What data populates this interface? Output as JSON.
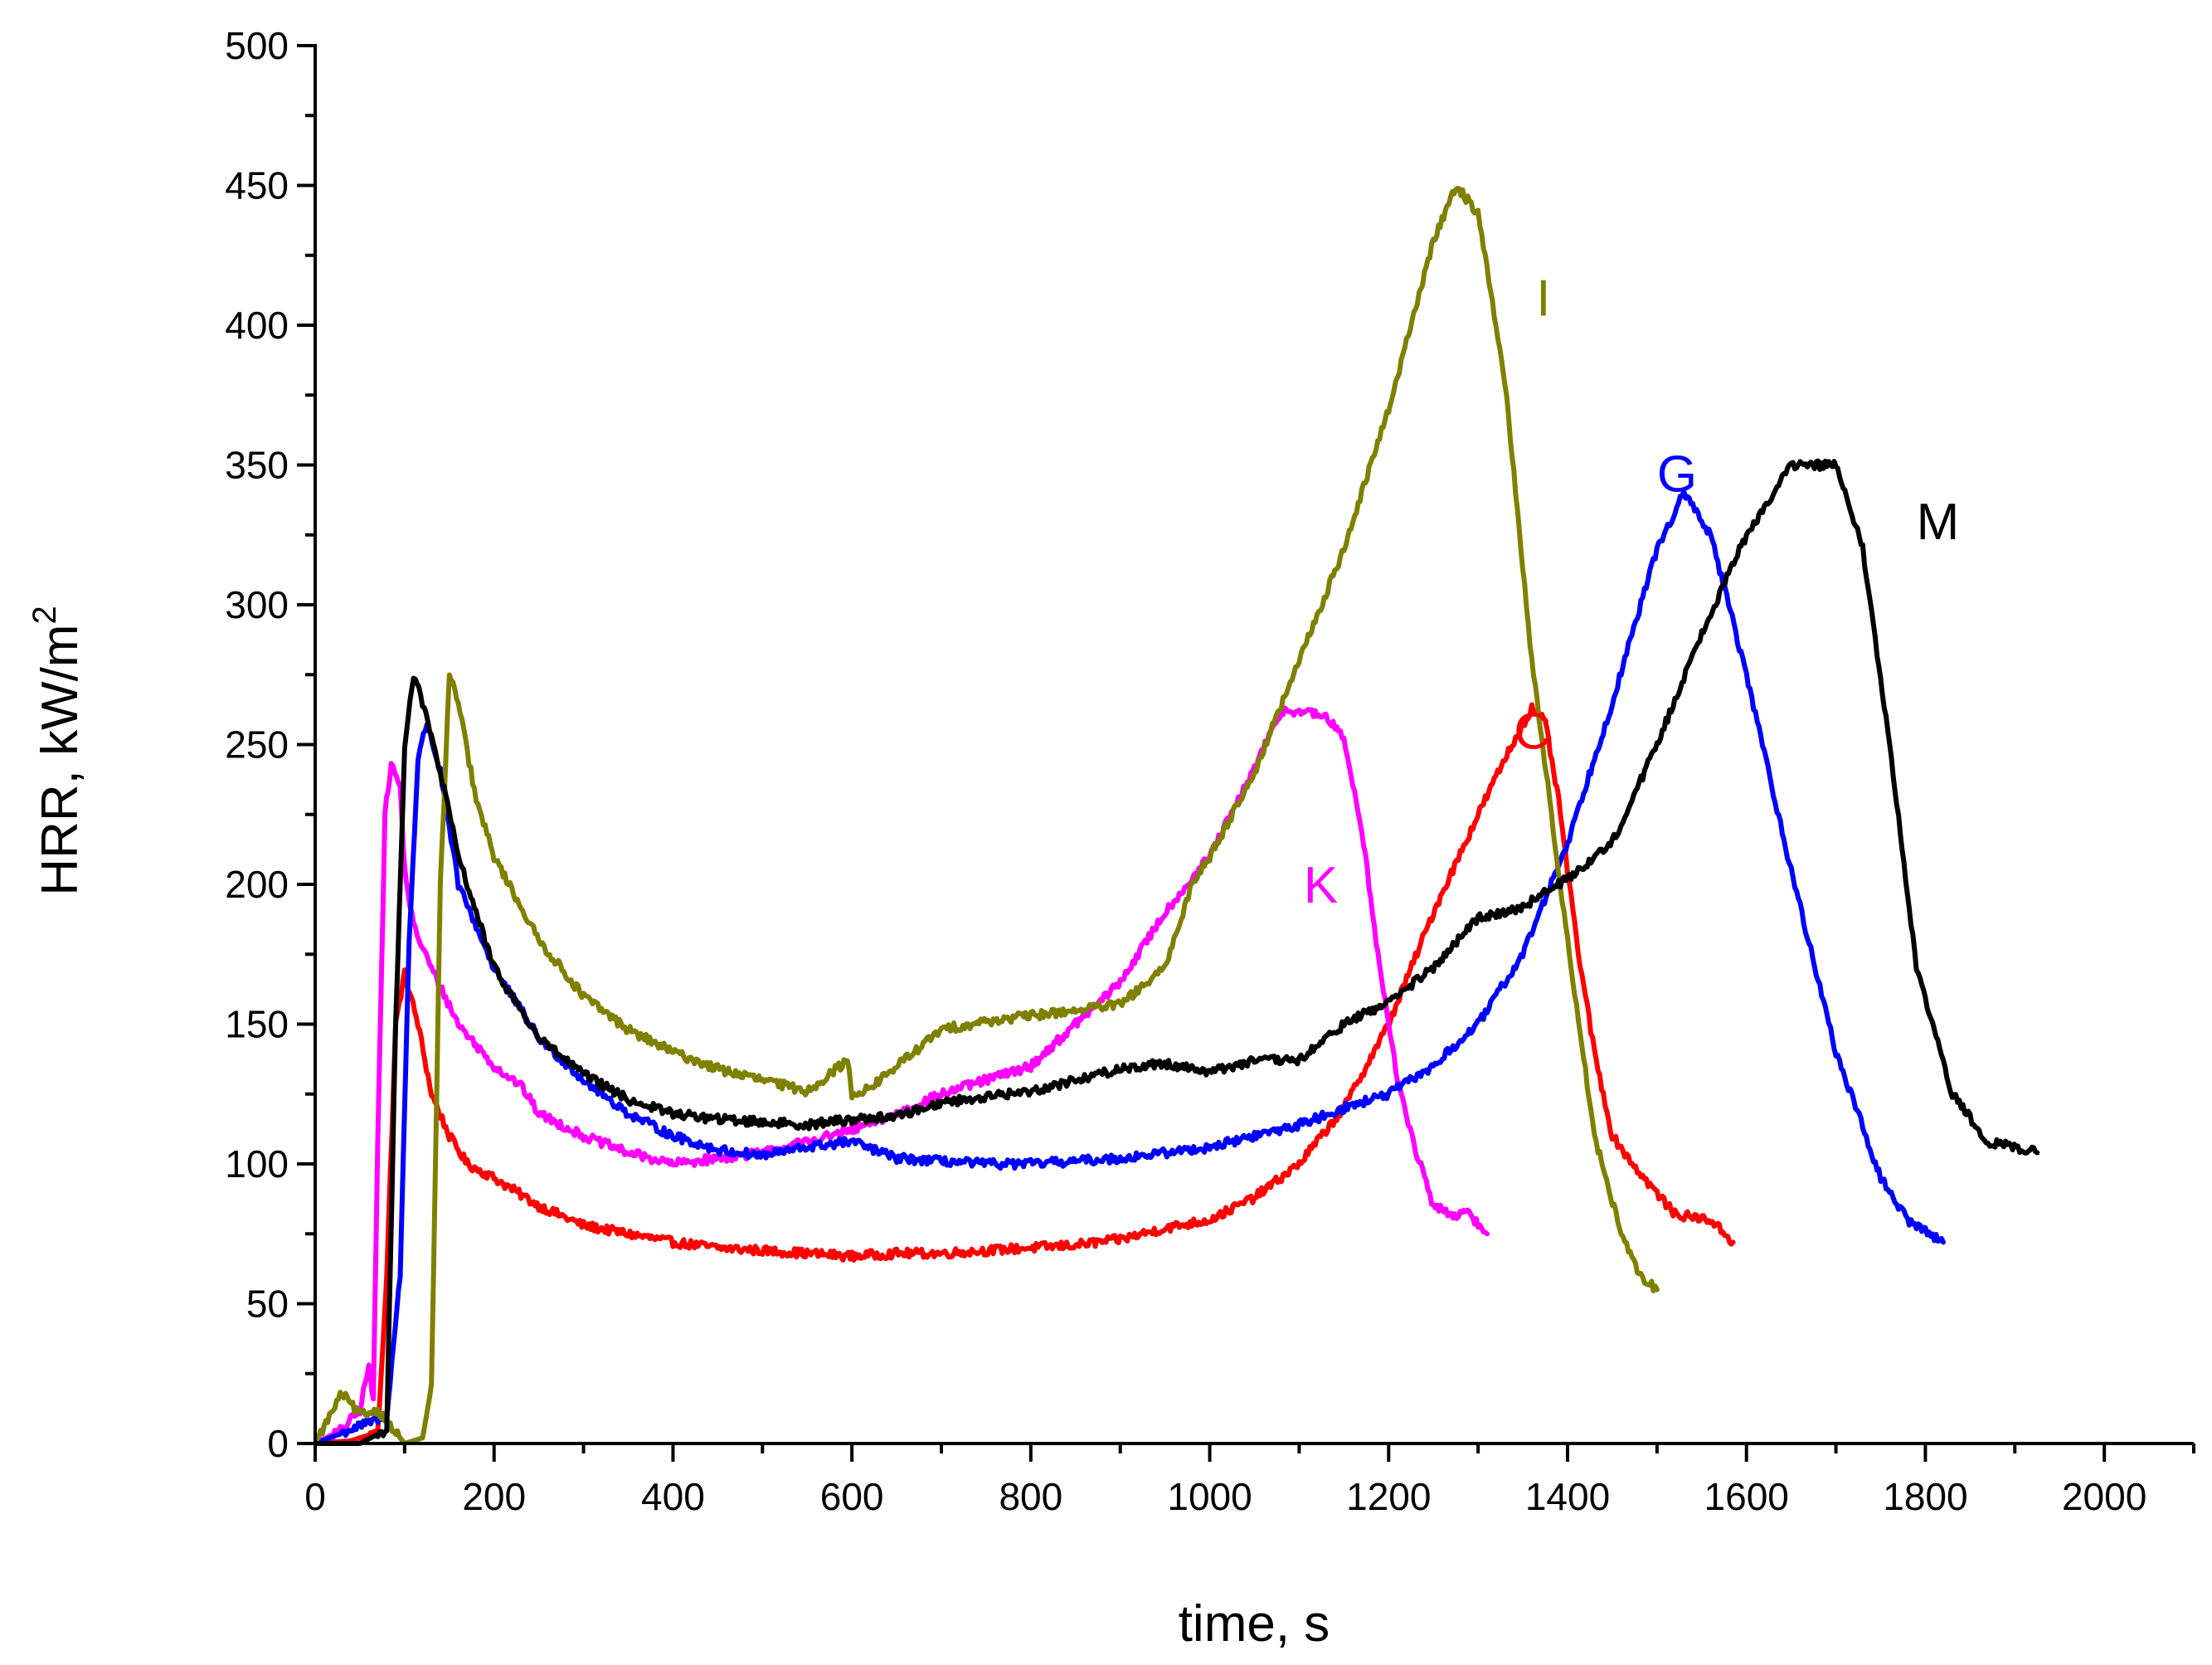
{
  "chart_data": {
    "type": "line",
    "title": "",
    "xlabel": "time, s",
    "ylabel_main": "HRR, kW/m",
    "ylabel_sup": "2",
    "xlim": [
      0,
      2100
    ],
    "ylim": [
      0,
      500
    ],
    "xticks": [
      0,
      200,
      400,
      600,
      800,
      1000,
      1200,
      1400,
      1600,
      1800,
      2000
    ],
    "yticks": [
      0,
      50,
      100,
      150,
      200,
      250,
      300,
      350,
      400,
      450,
      500
    ],
    "xtick_labels": [
      "0",
      "200",
      "400",
      "600",
      "800",
      "1000",
      "1200",
      "1400",
      "1600",
      "1800",
      "2000"
    ],
    "ytick_labels": [
      "0",
      "50",
      "100",
      "150",
      "200",
      "250",
      "300",
      "350",
      "400",
      "450",
      "500"
    ],
    "grid": false,
    "series": [
      {
        "name": "C",
        "color": "#ff0000",
        "label_at": [
          1340,
          255
        ],
        "points": [
          [
            0,
            0
          ],
          [
            40,
            1
          ],
          [
            70,
            4
          ],
          [
            80,
            60
          ],
          [
            90,
            150
          ],
          [
            100,
            168
          ],
          [
            115,
            150
          ],
          [
            130,
            125
          ],
          [
            150,
            110
          ],
          [
            170,
            100
          ],
          [
            200,
            95
          ],
          [
            250,
            85
          ],
          [
            300,
            78
          ],
          [
            350,
            75
          ],
          [
            400,
            72
          ],
          [
            450,
            70
          ],
          [
            500,
            69
          ],
          [
            550,
            68
          ],
          [
            600,
            67
          ],
          [
            650,
            68
          ],
          [
            700,
            68
          ],
          [
            750,
            69
          ],
          [
            800,
            70
          ],
          [
            850,
            71
          ],
          [
            900,
            73
          ],
          [
            950,
            77
          ],
          [
            1000,
            80
          ],
          [
            1050,
            88
          ],
          [
            1100,
            100
          ],
          [
            1150,
            120
          ],
          [
            1200,
            150
          ],
          [
            1250,
            190
          ],
          [
            1300,
            225
          ],
          [
            1330,
            245
          ],
          [
            1360,
            263
          ],
          [
            1375,
            258
          ],
          [
            1390,
            230
          ],
          [
            1410,
            180
          ],
          [
            1430,
            140
          ],
          [
            1450,
            110
          ],
          [
            1480,
            97
          ],
          [
            1520,
            82
          ],
          [
            1560,
            80
          ],
          [
            1585,
            72
          ]
        ]
      },
      {
        "name": "K",
        "color": "#ff00ff",
        "label_at": [
          1105,
          200
        ],
        "points": [
          [
            0,
            0
          ],
          [
            30,
            5
          ],
          [
            50,
            12
          ],
          [
            60,
            28
          ],
          [
            65,
            15
          ],
          [
            70,
            110
          ],
          [
            78,
            225
          ],
          [
            85,
            243
          ],
          [
            95,
            235
          ],
          [
            100,
            205
          ],
          [
            110,
            185
          ],
          [
            130,
            170
          ],
          [
            160,
            150
          ],
          [
            200,
            135
          ],
          [
            230,
            128
          ],
          [
            250,
            118
          ],
          [
            300,
            110
          ],
          [
            350,
            104
          ],
          [
            400,
            100
          ],
          [
            450,
            102
          ],
          [
            500,
            104
          ],
          [
            550,
            108
          ],
          [
            600,
            112
          ],
          [
            650,
            118
          ],
          [
            700,
            125
          ],
          [
            750,
            130
          ],
          [
            800,
            135
          ],
          [
            850,
            150
          ],
          [
            900,
            165
          ],
          [
            950,
            190
          ],
          [
            1000,
            210
          ],
          [
            1040,
            235
          ],
          [
            1080,
            262
          ],
          [
            1100,
            262
          ],
          [
            1130,
            260
          ],
          [
            1150,
            252
          ],
          [
            1170,
            220
          ],
          [
            1190,
            170
          ],
          [
            1210,
            130
          ],
          [
            1230,
            105
          ],
          [
            1250,
            85
          ],
          [
            1270,
            82
          ],
          [
            1290,
            82
          ],
          [
            1310,
            75
          ]
        ]
      },
      {
        "name": "G",
        "color": "#0000ff",
        "label_at": [
          1500,
          347
        ],
        "points": [
          [
            0,
            0
          ],
          [
            40,
            5
          ],
          [
            80,
            10
          ],
          [
            95,
            60
          ],
          [
            105,
            180
          ],
          [
            115,
            245
          ],
          [
            125,
            258
          ],
          [
            140,
            240
          ],
          [
            160,
            200
          ],
          [
            200,
            170
          ],
          [
            250,
            145
          ],
          [
            300,
            130
          ],
          [
            350,
            118
          ],
          [
            400,
            110
          ],
          [
            450,
            105
          ],
          [
            500,
            103
          ],
          [
            550,
            106
          ],
          [
            600,
            108
          ],
          [
            650,
            102
          ],
          [
            700,
            101
          ],
          [
            750,
            100
          ],
          [
            800,
            100
          ],
          [
            850,
            101
          ],
          [
            900,
            102
          ],
          [
            950,
            104
          ],
          [
            1000,
            106
          ],
          [
            1050,
            110
          ],
          [
            1100,
            114
          ],
          [
            1150,
            120
          ],
          [
            1200,
            125
          ],
          [
            1250,
            135
          ],
          [
            1300,
            150
          ],
          [
            1350,
            175
          ],
          [
            1400,
            215
          ],
          [
            1450,
            265
          ],
          [
            1500,
            320
          ],
          [
            1530,
            340
          ],
          [
            1560,
            325
          ],
          [
            1600,
            275
          ],
          [
            1650,
            205
          ],
          [
            1700,
            140
          ],
          [
            1750,
            95
          ],
          [
            1780,
            80
          ],
          [
            1820,
            72
          ]
        ]
      },
      {
        "name": "I",
        "color": "#808000",
        "label_at": [
          1365,
          410
        ],
        "points": [
          [
            0,
            0
          ],
          [
            30,
            18
          ],
          [
            50,
            10
          ],
          [
            70,
            12
          ],
          [
            100,
            0
          ],
          [
            120,
            2
          ],
          [
            130,
            20
          ],
          [
            140,
            200
          ],
          [
            150,
            275
          ],
          [
            160,
            265
          ],
          [
            180,
            230
          ],
          [
            200,
            210
          ],
          [
            250,
            180
          ],
          [
            300,
            160
          ],
          [
            350,
            148
          ],
          [
            400,
            140
          ],
          [
            450,
            134
          ],
          [
            500,
            130
          ],
          [
            550,
            126
          ],
          [
            595,
            137
          ],
          [
            600,
            125
          ],
          [
            620,
            127
          ],
          [
            650,
            135
          ],
          [
            700,
            148
          ],
          [
            750,
            151
          ],
          [
            800,
            153
          ],
          [
            850,
            155
          ],
          [
            900,
            157
          ],
          [
            950,
            170
          ],
          [
            980,
            200
          ],
          [
            1000,
            210
          ],
          [
            1050,
            240
          ],
          [
            1100,
            280
          ],
          [
            1150,
            320
          ],
          [
            1200,
            370
          ],
          [
            1250,
            430
          ],
          [
            1275,
            450
          ],
          [
            1300,
            440
          ],
          [
            1330,
            380
          ],
          [
            1360,
            280
          ],
          [
            1400,
            180
          ],
          [
            1430,
            110
          ],
          [
            1460,
            75
          ],
          [
            1480,
            60
          ],
          [
            1500,
            55
          ]
        ]
      },
      {
        "name": "M",
        "color": "#000000",
        "label_at": [
          1790,
          330
        ],
        "points": [
          [
            0,
            0
          ],
          [
            50,
            0
          ],
          [
            80,
            5
          ],
          [
            90,
            150
          ],
          [
            100,
            250
          ],
          [
            110,
            275
          ],
          [
            120,
            265
          ],
          [
            140,
            240
          ],
          [
            160,
            210
          ],
          [
            200,
            170
          ],
          [
            250,
            145
          ],
          [
            300,
            132
          ],
          [
            350,
            123
          ],
          [
            400,
            118
          ],
          [
            450,
            116
          ],
          [
            500,
            115
          ],
          [
            550,
            114
          ],
          [
            600,
            116
          ],
          [
            650,
            117
          ],
          [
            700,
            122
          ],
          [
            750,
            124
          ],
          [
            800,
            126
          ],
          [
            850,
            130
          ],
          [
            900,
            134
          ],
          [
            950,
            136
          ],
          [
            1000,
            133
          ],
          [
            1050,
            137
          ],
          [
            1100,
            137
          ],
          [
            1150,
            150
          ],
          [
            1200,
            158
          ],
          [
            1250,
            170
          ],
          [
            1300,
            188
          ],
          [
            1350,
            192
          ],
          [
            1400,
            202
          ],
          [
            1450,
            215
          ],
          [
            1500,
            250
          ],
          [
            1550,
            290
          ],
          [
            1600,
            325
          ],
          [
            1650,
            350
          ],
          [
            1700,
            350
          ],
          [
            1730,
            320
          ],
          [
            1760,
            250
          ],
          [
            1790,
            170
          ],
          [
            1830,
            125
          ],
          [
            1870,
            108
          ],
          [
            1925,
            104
          ]
        ]
      }
    ]
  }
}
